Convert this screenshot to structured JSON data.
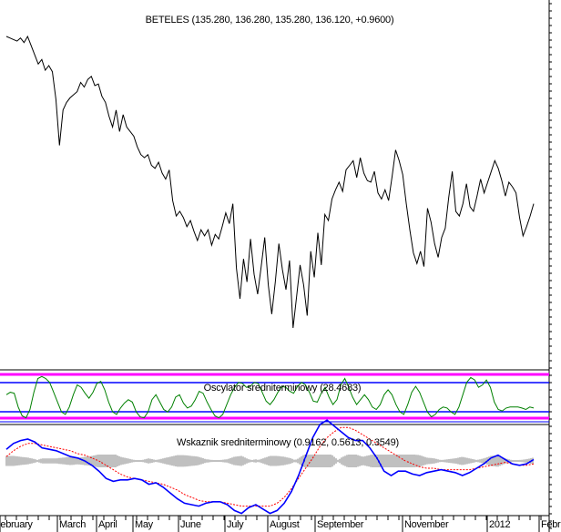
{
  "chart_data": [
    {
      "type": "line",
      "title": "BETELES (135.280, 136.280, 135.280, 136.120, +0.9600)",
      "series": [
        {
          "color": "#000000",
          "values": [
            190,
            189,
            188,
            187,
            189,
            186,
            190,
            184,
            178,
            172,
            175,
            168,
            171,
            167,
            149,
            119,
            142,
            147,
            150,
            152,
            154,
            160,
            157,
            162,
            164,
            158,
            159,
            151,
            147,
            138,
            131,
            142,
            128,
            139,
            131,
            128,
            125,
            118,
            113,
            111,
            113,
            106,
            104,
            108,
            101,
            97,
            103,
            83,
            73,
            76,
            72,
            66,
            70,
            63,
            57,
            64,
            60,
            64,
            54,
            61,
            58,
            66,
            75,
            68,
            81,
            39,
            19,
            45,
            30,
            58,
            35,
            22,
            40,
            59,
            28,
            9,
            30,
            55,
            38,
            25,
            44,
            0,
            20,
            41,
            28,
            8,
            50,
            33,
            62,
            41,
            74,
            70,
            84,
            90,
            95,
            89,
            103,
            106,
            109,
            98,
            111,
            101,
            96,
            95,
            102,
            88,
            84,
            90,
            83,
            99,
            116,
            109,
            100,
            81,
            64,
            49,
            42,
            50,
            40,
            78,
            69,
            55,
            46,
            59,
            65,
            85,
            102,
            76,
            73,
            81,
            94,
            79,
            76,
            86,
            97,
            88,
            95,
            102,
            109,
            104,
            96,
            86,
            95,
            92,
            88,
            72,
            60,
            66,
            73,
            81
          ]
        }
      ]
    },
    {
      "type": "line",
      "title": "Oscylator sredniterminowy (28.4683)",
      "series": [
        {
          "color": "#008000",
          "values": [
            55,
            60,
            58,
            30,
            12,
            8,
            25,
            60,
            88,
            92,
            88,
            80,
            60,
            40,
            20,
            15,
            30,
            55,
            75,
            70,
            58,
            48,
            60,
            78,
            82,
            65,
            40,
            20,
            15,
            28,
            38,
            45,
            40,
            20,
            10,
            8,
            20,
            45,
            55,
            40,
            25,
            20,
            30,
            50,
            55,
            38,
            28,
            32,
            45,
            62,
            58,
            40,
            25,
            12,
            8,
            15,
            35,
            55,
            70,
            80,
            78,
            70,
            72,
            80,
            78,
            60,
            42,
            35,
            45,
            60,
            72,
            70,
            62,
            58,
            72,
            80,
            75,
            60,
            42,
            40,
            58,
            70,
            50,
            35,
            45,
            75,
            88,
            70,
            50,
            35,
            45,
            55,
            45,
            30,
            25,
            35,
            55,
            65,
            55,
            35,
            20,
            15,
            35,
            60,
            72,
            60,
            40,
            20,
            10,
            15,
            25,
            30,
            28,
            20,
            15,
            30,
            55,
            80,
            90,
            85,
            70,
            75,
            85,
            70,
            40,
            25,
            22,
            28,
            30,
            30,
            30,
            28,
            25,
            30,
            28
          ]
        }
      ]
    },
    {
      "type": "line",
      "title": "Wskaznik sredniterminowy (0.9162, 0.5613, 0.3549)",
      "x_ticks": [
        "February",
        "March",
        "April",
        "May",
        "June",
        "July",
        "August",
        "September",
        "November",
        "2012",
        "February"
      ],
      "series": [
        {
          "color": "#0000ff",
          "values": [
            0.8,
            1.2,
            1.4,
            1.5,
            1.3,
            0.9,
            0.8,
            0.7,
            0.5,
            0.3,
            0.2,
            0.0,
            -0.3,
            -0.7,
            -1.2,
            -1.4,
            -1.3,
            -1.3,
            -1.2,
            -1.3,
            -1.6,
            -1.5,
            -1.8,
            -2.2,
            -2.6,
            -2.9,
            -3.0,
            -3.1,
            -2.9,
            -2.8,
            -2.8,
            -3.0,
            -3.4,
            -3.6,
            -3.2,
            -3.0,
            -3.3,
            -3.6,
            -3.4,
            -2.9,
            -2.1,
            -1.0,
            0.3,
            1.6,
            2.5,
            2.8,
            2.4,
            2.0,
            1.6,
            1.4,
            1.4,
            0.9,
            0.2,
            -0.7,
            -1.0,
            -0.7,
            -0.7,
            -0.9,
            -1.0,
            -0.8,
            -0.7,
            -0.6,
            -0.7,
            -0.8,
            -1.0,
            -0.8,
            -0.5,
            -0.2,
            0.2,
            0.4,
            0.1,
            -0.2,
            -0.3,
            -0.2,
            0.1
          ]
        },
        {
          "color": "#ff0000",
          "values": [
            0.3,
            0.7,
            1.0,
            1.2,
            1.2,
            1.1,
            1.0,
            0.9,
            0.8,
            0.7,
            0.5,
            0.4,
            0.2,
            0.0,
            -0.3,
            -0.6,
            -0.9,
            -1.1,
            -1.2,
            -1.3,
            -1.4,
            -1.5,
            -1.6,
            -1.8,
            -2.0,
            -2.3,
            -2.5,
            -2.7,
            -2.8,
            -2.8,
            -2.8,
            -2.9,
            -3.0,
            -3.1,
            -3.1,
            -3.1,
            -3.1,
            -3.1,
            -2.9,
            -2.5,
            -1.9,
            -1.2,
            -0.5,
            0.2,
            1.0,
            1.6,
            2.0,
            2.3,
            2.3,
            2.1,
            1.8,
            1.5,
            1.2,
            0.9,
            0.6,
            0.3,
            0.0,
            -0.2,
            -0.4,
            -0.5,
            -0.5,
            -0.6,
            -0.6,
            -0.6,
            -0.6,
            -0.6,
            -0.5,
            -0.4,
            -0.3,
            -0.2,
            -0.1,
            -0.2,
            -0.3,
            -0.3,
            -0.2
          ]
        }
      ]
    }
  ]
}
